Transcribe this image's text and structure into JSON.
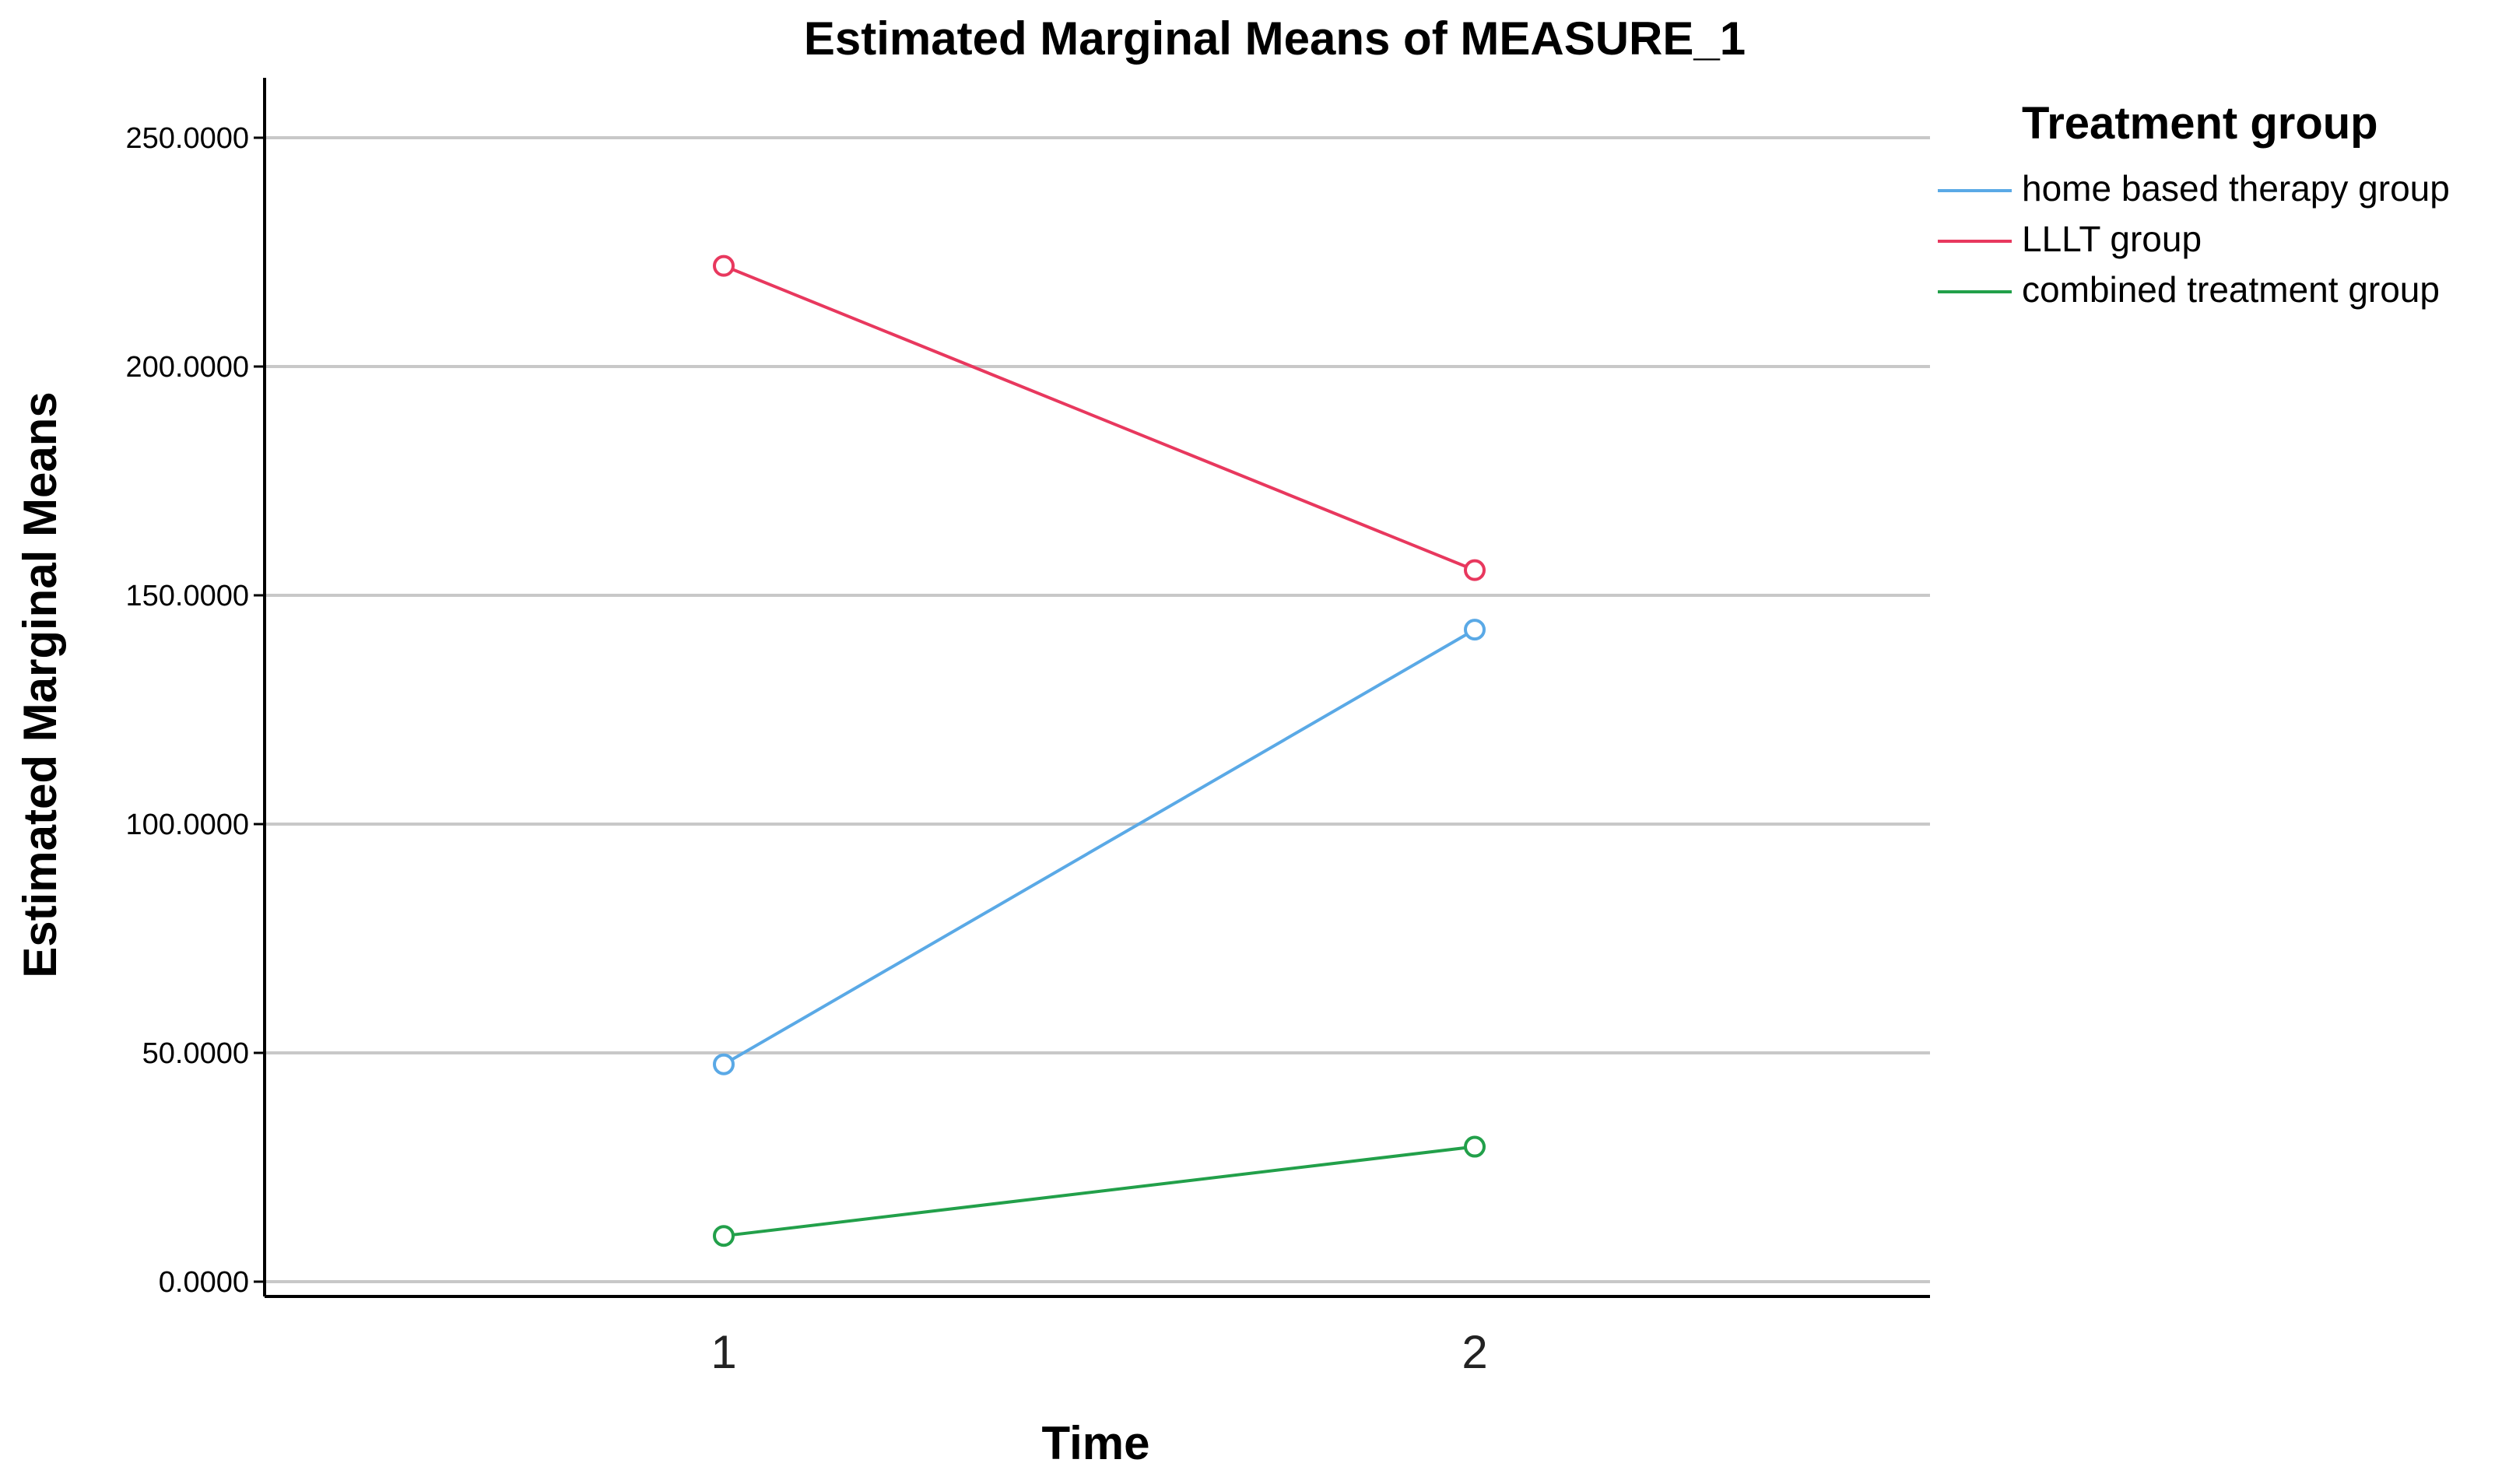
{
  "chart_data": {
    "type": "line",
    "title": "Estimated Marginal Means of MEASURE_1",
    "xlabel": "Time",
    "ylabel": "Estimated Marginal Means",
    "categories": [
      "1",
      "2"
    ],
    "ylim": [
      0,
      250
    ],
    "yticks": [
      "0.0000",
      "50.0000",
      "100.0000",
      "150.0000",
      "200.0000",
      "250.0000"
    ],
    "grid": true,
    "legend": {
      "title": "Treatment group",
      "placement": "top-right"
    },
    "series": [
      {
        "name": "home based therapy group",
        "color": "#5aa9e6",
        "values": [
          47.5,
          142.5
        ]
      },
      {
        "name": "LLLT group",
        "color": "#e8385e",
        "values": [
          222.0,
          155.5
        ]
      },
      {
        "name": "combined treatment group",
        "color": "#22a04a",
        "values": [
          10.0,
          29.5
        ]
      }
    ],
    "marker": "open-circle"
  }
}
